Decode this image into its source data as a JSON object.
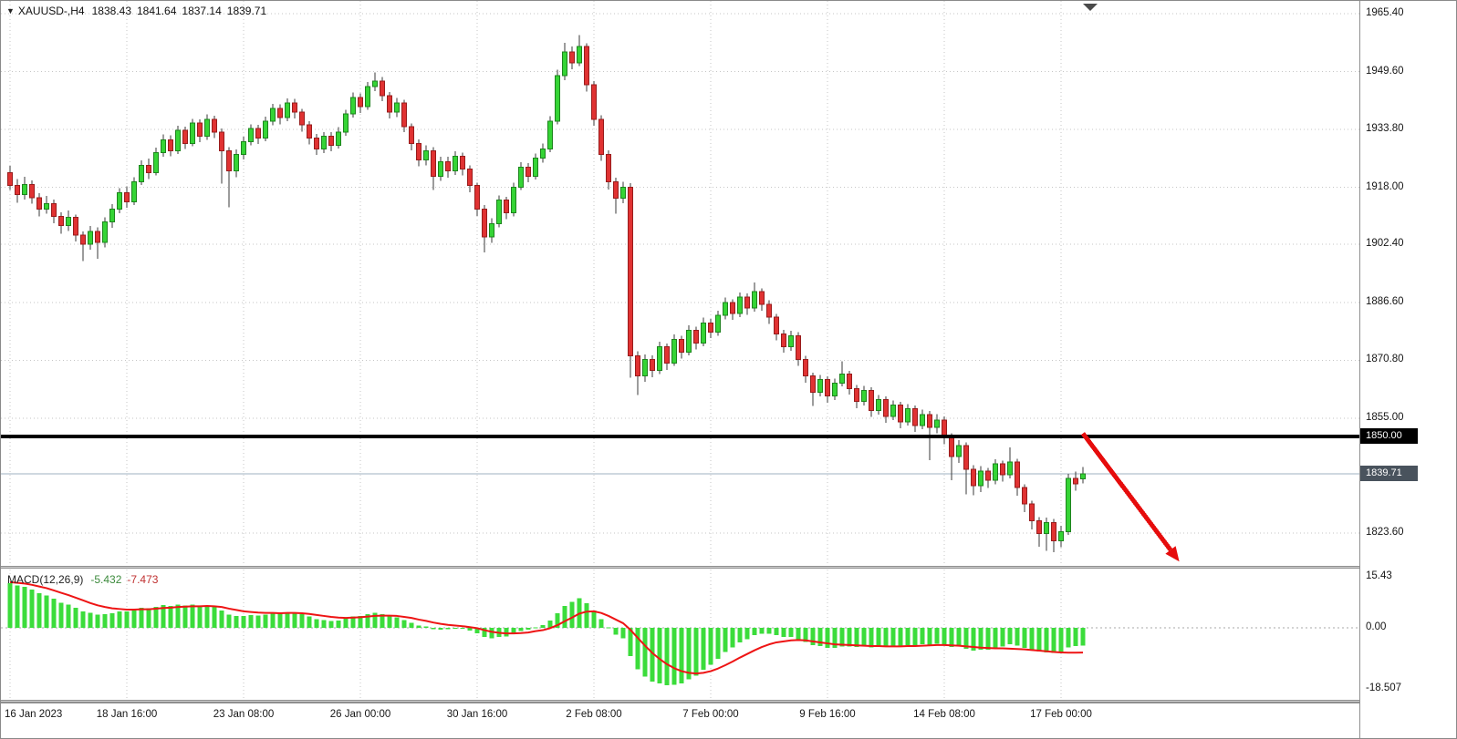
{
  "symbol_bar": {
    "dropdown_glyph": "▼",
    "symbol": "XAUUSD-,H4",
    "open": "1838.43",
    "high": "1841.64",
    "low": "1837.14",
    "close": "1839.71"
  },
  "price_axis": {
    "level_badge": {
      "value": "1850.00",
      "bg": "#000000"
    },
    "bid_badge": {
      "value": "1839.71",
      "bg": "#49535d"
    }
  },
  "macd_panel": {
    "label": "MACD(12,26,9)",
    "value_main": "-5.432",
    "value_signal": "-7.473"
  },
  "colors": {
    "bull_candle": "#35d435",
    "bull_candle_border": "#1d841d",
    "bear_candle": "#e03232",
    "bear_candle_border": "#981c1c",
    "wick": "#3a3a3a",
    "macd_histogram": "#3bdc3b",
    "macd_signal": "#ee1414",
    "grid": "#c6c6c6",
    "zero_line": "#a8a8a8",
    "level_line": "#000000",
    "bid_line": "#9fb0c0",
    "arrow": "#e60c0c",
    "shift_marker": "#4a4a4a"
  },
  "annotations": {
    "horizontal_level": {
      "price": 1850.0,
      "thickness": 4
    },
    "bid_line_price": 1839.71,
    "trend_arrow": {
      "from_bar": 147,
      "from_price": 1850.8,
      "to_bar": 159,
      "to_price": 1819.0
    }
  },
  "chart_data": {
    "type": "candlestick",
    "title": "XAUUSD- H4 with MACD(12,26,9)",
    "symbol": "XAUUSD-",
    "timeframe": "H4",
    "last_ohlc": {
      "open": 1838.43,
      "high": 1841.64,
      "low": 1837.14,
      "close": 1839.71
    },
    "price_ticks": [
      "1965.40",
      "1949.60",
      "1933.80",
      "1918.00",
      "1902.40",
      "1886.60",
      "1870.80",
      "1855.00",
      "1823.60"
    ],
    "horizontal_level_price": 1850.0,
    "bid_price": 1839.71,
    "time_labels": [
      {
        "bar": 0,
        "text": "16 Jan 2023"
      },
      {
        "bar": 16,
        "text": "18 Jan 16:00"
      },
      {
        "bar": 32,
        "text": "23 Jan 08:00"
      },
      {
        "bar": 48,
        "text": "26 Jan 00:00"
      },
      {
        "bar": 64,
        "text": "30 Jan 16:00"
      },
      {
        "bar": 80,
        "text": "2 Feb 08:00"
      },
      {
        "bar": 96,
        "text": "7 Feb 00:00"
      },
      {
        "bar": 112,
        "text": "9 Feb 16:00"
      },
      {
        "bar": 128,
        "text": "14 Feb 08:00"
      },
      {
        "bar": 144,
        "text": "17 Feb 00:00"
      }
    ],
    "candles": [
      [
        1922.0,
        1923.8,
        1917.2,
        1918.5
      ],
      [
        1918.5,
        1920.3,
        1913.8,
        1916.0
      ],
      [
        1916.0,
        1920.9,
        1914.7,
        1918.8
      ],
      [
        1918.8,
        1919.9,
        1913.5,
        1915.2
      ],
      [
        1915.2,
        1916.4,
        1910.1,
        1912.0
      ],
      [
        1912.0,
        1915.6,
        1910.8,
        1913.5
      ],
      [
        1913.5,
        1914.6,
        1908.2,
        1910.0
      ],
      [
        1910.0,
        1911.2,
        1905.3,
        1907.5
      ],
      [
        1907.5,
        1911.7,
        1906.1,
        1909.8
      ],
      [
        1909.8,
        1910.5,
        1903.2,
        1905.0
      ],
      [
        1905.0,
        1906.0,
        1897.8,
        1902.5
      ],
      [
        1902.5,
        1907.4,
        1901.0,
        1906.0
      ],
      [
        1906.0,
        1907.1,
        1898.5,
        1903.0
      ],
      [
        1903.0,
        1909.8,
        1901.6,
        1908.5
      ],
      [
        1908.5,
        1913.4,
        1907.0,
        1912.0
      ],
      [
        1912.0,
        1917.8,
        1910.9,
        1916.5
      ],
      [
        1916.5,
        1918.2,
        1912.4,
        1914.0
      ],
      [
        1914.0,
        1920.7,
        1913.1,
        1919.5
      ],
      [
        1919.5,
        1925.3,
        1918.6,
        1924.0
      ],
      [
        1924.0,
        1925.9,
        1920.3,
        1922.0
      ],
      [
        1922.0,
        1928.8,
        1921.2,
        1927.5
      ],
      [
        1927.5,
        1932.4,
        1926.3,
        1931.0
      ],
      [
        1931.0,
        1932.2,
        1926.5,
        1928.0
      ],
      [
        1928.0,
        1934.8,
        1927.1,
        1933.5
      ],
      [
        1933.5,
        1934.6,
        1928.4,
        1930.0
      ],
      [
        1930.0,
        1936.7,
        1929.2,
        1935.5
      ],
      [
        1935.5,
        1936.6,
        1930.3,
        1932.0
      ],
      [
        1932.0,
        1937.9,
        1931.0,
        1936.5
      ],
      [
        1936.5,
        1937.5,
        1931.4,
        1933.0
      ],
      [
        1933.0,
        1934.1,
        1919.0,
        1928.0
      ],
      [
        1928.0,
        1929.0,
        1912.5,
        1922.5
      ],
      [
        1922.5,
        1928.3,
        1920.8,
        1927.0
      ],
      [
        1927.0,
        1931.8,
        1925.6,
        1930.5
      ],
      [
        1930.5,
        1935.2,
        1929.4,
        1934.0
      ],
      [
        1934.0,
        1935.1,
        1929.8,
        1931.5
      ],
      [
        1931.5,
        1937.3,
        1930.6,
        1936.0
      ],
      [
        1936.0,
        1940.8,
        1934.9,
        1939.5
      ],
      [
        1939.5,
        1940.6,
        1935.2,
        1937.0
      ],
      [
        1937.0,
        1942.3,
        1936.1,
        1941.0
      ],
      [
        1941.0,
        1942.1,
        1936.8,
        1938.5
      ],
      [
        1938.5,
        1939.4,
        1933.2,
        1935.0
      ],
      [
        1935.0,
        1936.0,
        1929.7,
        1931.5
      ],
      [
        1931.5,
        1932.6,
        1926.9,
        1928.5
      ],
      [
        1928.5,
        1933.1,
        1927.3,
        1932.0
      ],
      [
        1932.0,
        1933.0,
        1927.8,
        1929.5
      ],
      [
        1929.5,
        1934.4,
        1928.6,
        1933.0
      ],
      [
        1933.0,
        1939.2,
        1932.1,
        1938.0
      ],
      [
        1938.0,
        1943.9,
        1937.0,
        1942.5
      ],
      [
        1942.5,
        1943.6,
        1938.3,
        1940.0
      ],
      [
        1940.0,
        1946.8,
        1939.1,
        1945.5
      ],
      [
        1945.5,
        1949.3,
        1944.2,
        1947.0
      ],
      [
        1947.0,
        1948.1,
        1941.5,
        1943.0
      ],
      [
        1943.0,
        1944.0,
        1936.8,
        1938.5
      ],
      [
        1938.5,
        1942.4,
        1937.2,
        1941.0
      ],
      [
        1941.0,
        1941.9,
        1933.0,
        1934.5
      ],
      [
        1934.5,
        1935.4,
        1928.1,
        1930.0
      ],
      [
        1930.0,
        1931.1,
        1923.7,
        1925.5
      ],
      [
        1925.5,
        1929.4,
        1924.0,
        1928.0
      ],
      [
        1928.0,
        1928.9,
        1917.3,
        1921.0
      ],
      [
        1921.0,
        1926.3,
        1919.8,
        1925.0
      ],
      [
        1925.0,
        1926.4,
        1920.6,
        1922.5
      ],
      [
        1922.5,
        1927.8,
        1921.4,
        1926.5
      ],
      [
        1926.5,
        1927.4,
        1921.2,
        1923.0
      ],
      [
        1923.0,
        1924.0,
        1916.7,
        1918.5
      ],
      [
        1918.5,
        1919.3,
        1910.2,
        1912.0
      ],
      [
        1912.0,
        1913.1,
        1900.2,
        1904.5
      ],
      [
        1904.5,
        1909.6,
        1902.8,
        1908.0
      ],
      [
        1908.0,
        1915.8,
        1907.1,
        1914.5
      ],
      [
        1914.5,
        1915.4,
        1909.3,
        1911.0
      ],
      [
        1911.0,
        1919.2,
        1910.0,
        1918.0
      ],
      [
        1918.0,
        1924.8,
        1917.2,
        1923.5
      ],
      [
        1923.5,
        1924.6,
        1919.4,
        1921.0
      ],
      [
        1921.0,
        1927.2,
        1920.1,
        1926.0
      ],
      [
        1926.0,
        1929.9,
        1924.7,
        1928.5
      ],
      [
        1928.5,
        1937.4,
        1927.6,
        1936.0
      ],
      [
        1936.0,
        1950.1,
        1935.2,
        1948.5
      ],
      [
        1948.5,
        1957.5,
        1947.3,
        1955.0
      ],
      [
        1955.0,
        1956.4,
        1950.2,
        1952.0
      ],
      [
        1952.0,
        1959.6,
        1951.1,
        1956.5
      ],
      [
        1956.5,
        1957.3,
        1944.1,
        1946.0
      ],
      [
        1946.0,
        1947.0,
        1934.8,
        1936.5
      ],
      [
        1936.5,
        1937.6,
        1925.2,
        1927.0
      ],
      [
        1927.0,
        1928.1,
        1917.4,
        1919.5
      ],
      [
        1919.5,
        1920.6,
        1910.8,
        1915.0
      ],
      [
        1915.0,
        1919.5,
        1913.6,
        1918.0
      ],
      [
        1918.0,
        1919.1,
        1866.0,
        1872.0
      ],
      [
        1872.0,
        1873.2,
        1861.3,
        1866.5
      ],
      [
        1866.5,
        1872.4,
        1864.9,
        1871.0
      ],
      [
        1871.0,
        1872.1,
        1866.2,
        1868.0
      ],
      [
        1868.0,
        1875.8,
        1867.0,
        1874.5
      ],
      [
        1874.5,
        1875.4,
        1868.1,
        1870.0
      ],
      [
        1870.0,
        1877.8,
        1869.2,
        1876.5
      ],
      [
        1876.5,
        1877.4,
        1871.3,
        1873.0
      ],
      [
        1873.0,
        1880.3,
        1872.1,
        1879.0
      ],
      [
        1879.0,
        1880.0,
        1873.7,
        1875.5
      ],
      [
        1875.5,
        1882.4,
        1874.6,
        1881.0
      ],
      [
        1881.0,
        1882.0,
        1876.8,
        1878.5
      ],
      [
        1878.5,
        1884.3,
        1877.5,
        1883.0
      ],
      [
        1883.0,
        1887.9,
        1881.9,
        1886.5
      ],
      [
        1886.5,
        1887.4,
        1881.8,
        1883.5
      ],
      [
        1883.5,
        1889.3,
        1882.6,
        1888.0
      ],
      [
        1888.0,
        1889.0,
        1883.2,
        1885.0
      ],
      [
        1885.0,
        1892.0,
        1884.1,
        1889.5
      ],
      [
        1889.5,
        1890.4,
        1884.3,
        1886.0
      ],
      [
        1886.0,
        1887.1,
        1880.7,
        1882.5
      ],
      [
        1882.5,
        1883.4,
        1876.2,
        1878.0
      ],
      [
        1878.0,
        1879.1,
        1872.8,
        1874.5
      ],
      [
        1874.5,
        1878.8,
        1873.4,
        1877.5
      ],
      [
        1877.5,
        1878.4,
        1869.3,
        1871.0
      ],
      [
        1871.0,
        1872.0,
        1864.7,
        1866.5
      ],
      [
        1866.5,
        1867.4,
        1858.3,
        1862.0
      ],
      [
        1862.0,
        1866.8,
        1860.9,
        1865.5
      ],
      [
        1865.5,
        1866.4,
        1859.2,
        1861.0
      ],
      [
        1861.0,
        1865.8,
        1859.9,
        1864.5
      ],
      [
        1864.5,
        1870.5,
        1863.6,
        1867.0
      ],
      [
        1867.0,
        1867.9,
        1861.4,
        1863.0
      ],
      [
        1863.0,
        1864.0,
        1857.7,
        1859.5
      ],
      [
        1859.5,
        1863.8,
        1858.4,
        1862.5
      ],
      [
        1862.5,
        1863.4,
        1855.3,
        1857.0
      ],
      [
        1857.0,
        1861.3,
        1855.9,
        1860.0
      ],
      [
        1860.0,
        1860.9,
        1853.7,
        1855.5
      ],
      [
        1855.5,
        1859.8,
        1854.4,
        1858.5
      ],
      [
        1858.5,
        1859.4,
        1852.2,
        1854.0
      ],
      [
        1854.0,
        1858.8,
        1852.9,
        1857.5
      ],
      [
        1857.5,
        1858.4,
        1851.2,
        1853.0
      ],
      [
        1853.0,
        1857.3,
        1851.9,
        1856.0
      ],
      [
        1856.0,
        1856.9,
        1843.5,
        1852.5
      ],
      [
        1852.5,
        1856.1,
        1850.8,
        1854.5
      ],
      [
        1854.5,
        1855.4,
        1847.9,
        1850.0
      ],
      [
        1850.0,
        1850.9,
        1838.0,
        1844.5
      ],
      [
        1844.5,
        1849.0,
        1842.8,
        1847.5
      ],
      [
        1847.5,
        1848.4,
        1834.2,
        1841.0
      ],
      [
        1841.0,
        1842.1,
        1833.9,
        1836.5
      ],
      [
        1836.5,
        1841.9,
        1834.8,
        1840.5
      ],
      [
        1840.5,
        1841.4,
        1835.9,
        1838.0
      ],
      [
        1838.0,
        1843.8,
        1836.9,
        1842.5
      ],
      [
        1842.5,
        1843.4,
        1837.6,
        1839.5
      ],
      [
        1839.5,
        1847.0,
        1838.5,
        1843.0
      ],
      [
        1843.0,
        1843.9,
        1833.8,
        1836.0
      ],
      [
        1836.0,
        1836.9,
        1829.3,
        1831.5
      ],
      [
        1831.5,
        1832.4,
        1824.6,
        1827.0
      ],
      [
        1827.0,
        1827.9,
        1819.9,
        1823.5
      ],
      [
        1823.5,
        1827.8,
        1818.8,
        1826.5
      ],
      [
        1826.5,
        1827.4,
        1818.4,
        1821.5
      ],
      [
        1821.5,
        1825.6,
        1819.7,
        1824.0
      ],
      [
        1824.0,
        1839.8,
        1823.1,
        1838.5
      ],
      [
        1838.5,
        1840.4,
        1835.2,
        1837.0
      ],
      [
        1838.43,
        1841.64,
        1837.14,
        1839.71
      ]
    ],
    "macd": {
      "label": "MACD(12,26,9)",
      "params": [
        12,
        26,
        9
      ],
      "current_main": -5.432,
      "current_signal": -7.473,
      "axis_ticks": [
        "15.43",
        "0.00",
        "-18.507"
      ],
      "ylim": [
        -18.507,
        15.43
      ],
      "histogram": [
        13.5,
        12.8,
        12.4,
        11.6,
        10.5,
        9.8,
        8.8,
        7.6,
        7.0,
        6.0,
        4.9,
        4.6,
        4.0,
        4.1,
        4.4,
        5.0,
        4.9,
        5.3,
        6.0,
        5.9,
        6.4,
        6.9,
        6.6,
        7.0,
        6.7,
        7.0,
        6.6,
        6.8,
        6.3,
        5.3,
        4.0,
        3.6,
        3.6,
        3.9,
        3.7,
        4.0,
        4.4,
        4.3,
        4.7,
        4.6,
        4.1,
        3.4,
        2.6,
        2.4,
        2.1,
        2.2,
        2.7,
        3.4,
        3.6,
        4.2,
        4.6,
        4.2,
        3.4,
        3.2,
        2.4,
        1.5,
        0.7,
        0.4,
        -0.4,
        -0.5,
        -0.4,
        -0.1,
        -0.3,
        -0.8,
        -1.6,
        -2.8,
        -3.2,
        -2.7,
        -2.6,
        -1.9,
        -0.9,
        -0.5,
        0.2,
        0.8,
        2.2,
        4.4,
        6.6,
        7.8,
        8.9,
        7.4,
        5.2,
        2.6,
        0.1,
        -2.0,
        -3.1,
        -8.5,
        -12.6,
        -14.8,
        -16.3,
        -16.8,
        -17.4,
        -17.2,
        -16.8,
        -15.6,
        -14.4,
        -12.7,
        -11.2,
        -9.3,
        -7.3,
        -5.9,
        -4.4,
        -3.4,
        -2.2,
        -1.8,
        -1.8,
        -2.2,
        -2.7,
        -2.8,
        -3.4,
        -4.3,
        -5.2,
        -5.5,
        -6.0,
        -6.0,
        -5.6,
        -5.6,
        -5.8,
        -5.6,
        -5.9,
        -5.7,
        -5.8,
        -5.5,
        -5.6,
        -5.2,
        -5.3,
        -4.9,
        -5.2,
        -4.8,
        -5.1,
        -5.8,
        -5.6,
        -6.3,
        -6.9,
        -6.6,
        -6.6,
        -6.0,
        -5.7,
        -5.0,
        -5.4,
        -6.0,
        -6.6,
        -7.2,
        -7.4,
        -7.6,
        -7.3,
        -5.9,
        -5.5,
        -5.432
      ],
      "signal": [
        13.8,
        13.6,
        13.4,
        13.0,
        12.5,
        12.0,
        11.3,
        10.6,
        9.9,
        9.1,
        8.3,
        7.5,
        6.8,
        6.3,
        5.9,
        5.7,
        5.5,
        5.5,
        5.6,
        5.6,
        5.8,
        6.0,
        6.1,
        6.3,
        6.4,
        6.5,
        6.5,
        6.6,
        6.5,
        6.3,
        5.8,
        5.4,
        5.0,
        4.8,
        4.6,
        4.5,
        4.5,
        4.4,
        4.5,
        4.5,
        4.4,
        4.2,
        3.9,
        3.6,
        3.3,
        3.1,
        3.0,
        3.1,
        3.2,
        3.4,
        3.6,
        3.7,
        3.7,
        3.6,
        3.3,
        3.0,
        2.5,
        2.1,
        1.6,
        1.2,
        0.9,
        0.7,
        0.5,
        0.2,
        -0.1,
        -0.7,
        -1.2,
        -1.5,
        -1.7,
        -1.7,
        -1.6,
        -1.4,
        -1.0,
        -0.7,
        -0.1,
        0.8,
        2.0,
        3.1,
        4.3,
        4.9,
        5.0,
        4.5,
        3.6,
        2.5,
        1.4,
        -0.6,
        -3.0,
        -5.4,
        -7.6,
        -9.4,
        -11.0,
        -12.2,
        -13.1,
        -13.6,
        -13.8,
        -13.6,
        -13.1,
        -12.3,
        -11.3,
        -10.2,
        -9.0,
        -7.9,
        -6.8,
        -5.8,
        -5.0,
        -4.4,
        -4.1,
        -3.8,
        -3.7,
        -3.8,
        -4.1,
        -4.4,
        -4.7,
        -5.0,
        -5.1,
        -5.2,
        -5.3,
        -5.4,
        -5.5,
        -5.5,
        -5.6,
        -5.6,
        -5.6,
        -5.5,
        -5.5,
        -5.4,
        -5.3,
        -5.2,
        -5.2,
        -5.3,
        -5.4,
        -5.6,
        -5.8,
        -6.0,
        -6.1,
        -6.2,
        -6.2,
        -6.3,
        -6.4,
        -6.5,
        -6.7,
        -6.9,
        -7.1,
        -7.3,
        -7.45,
        -7.5,
        -7.5,
        -7.473
      ]
    }
  }
}
